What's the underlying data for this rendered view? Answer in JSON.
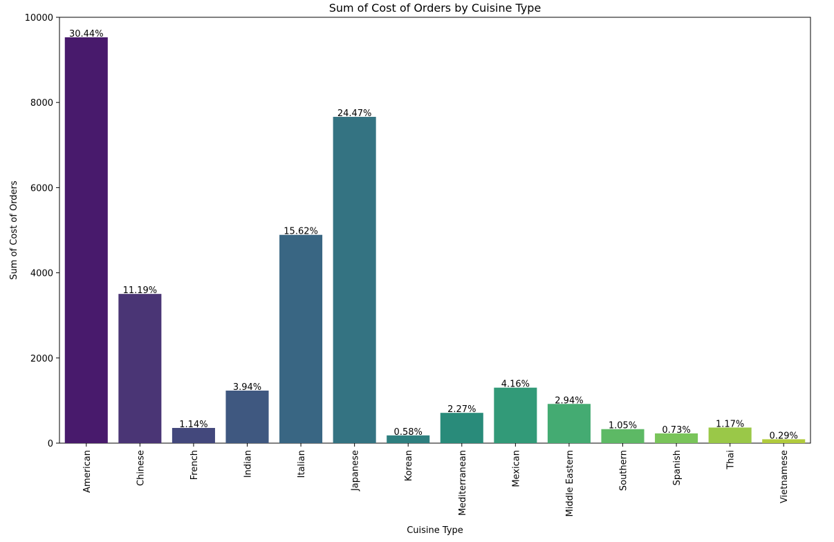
{
  "chart_data": {
    "type": "bar",
    "title": "Sum of Cost of Orders by Cuisine Type",
    "x_label": "Cuisine Type",
    "y_label": "Sum of Cost of Orders",
    "categories": [
      "American",
      "Chinese",
      "French",
      "Indian",
      "Italian",
      "Japanese",
      "Korean",
      "Mediterranean",
      "Mexican",
      "Middle Eastern",
      "Southern",
      "Spanish",
      "Thai",
      "Vietnamese"
    ],
    "values": [
      9530,
      3504,
      357,
      1234,
      4891,
      7662,
      182,
      711,
      1303,
      921,
      329,
      229,
      366,
      91
    ],
    "bar_labels": [
      "30.44%",
      "11.19%",
      "1.14%",
      "3.94%",
      "15.62%",
      "24.47%",
      "0.58%",
      "2.27%",
      "4.16%",
      "2.94%",
      "1.05%",
      "0.73%",
      "1.17%",
      "0.29%"
    ],
    "colors": [
      "#481a6c",
      "#4a3575",
      "#43487c",
      "#3f5880",
      "#396683",
      "#347382",
      "#2e7f7f",
      "#298b7a",
      "#329a78",
      "#44ab72",
      "#5db965",
      "#79c45a",
      "#9ac848",
      "#b1cb3c"
    ],
    "ylim": [
      0,
      10000
    ],
    "yticks": [
      0,
      2000,
      4000,
      6000,
      8000,
      10000
    ]
  }
}
